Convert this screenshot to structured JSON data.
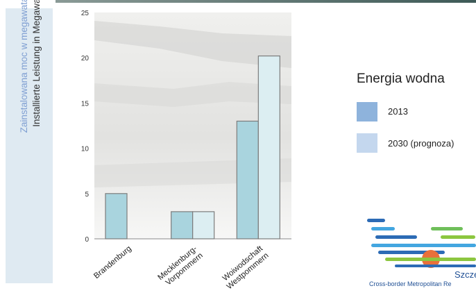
{
  "ylabel_secondary": "Zainstalowana moc w megawatach (MW)",
  "ylabel_primary": "Installierte Leistung in Megawatt (MW)",
  "chart_data": {
    "type": "bar",
    "title": "Energia wodna",
    "categories": [
      "Brandenburg",
      "Mecklenburg-Vorpommern",
      "Woiwodschaft Westpommern"
    ],
    "category_lines": [
      [
        "Brandenburg"
      ],
      [
        "Mecklenburg-",
        "Vorpommern"
      ],
      [
        "Woiwodschaft",
        "Westpommern"
      ]
    ],
    "series": [
      {
        "name": "2013",
        "values": [
          5,
          3,
          13
        ],
        "color": "#a9d4de"
      },
      {
        "name": "2030 (prognoza)",
        "values": [
          null,
          3,
          20.2
        ],
        "color": "#dceef2"
      }
    ],
    "ylim": [
      0,
      25
    ],
    "yticks": [
      0,
      5,
      10,
      15,
      20,
      25
    ],
    "grid": false,
    "legend_position": "right"
  },
  "legend": {
    "swatch_colors": [
      "#8eb3dc",
      "#c4d7ee"
    ]
  },
  "logo": {
    "city_text": "Szcze",
    "subtitle": "Cross-border Metropolitan Re",
    "stripe_colors": [
      "#2c6bb5",
      "#43a6e0",
      "#8cc63f",
      "#6fbf5a",
      "#e8703a"
    ]
  }
}
